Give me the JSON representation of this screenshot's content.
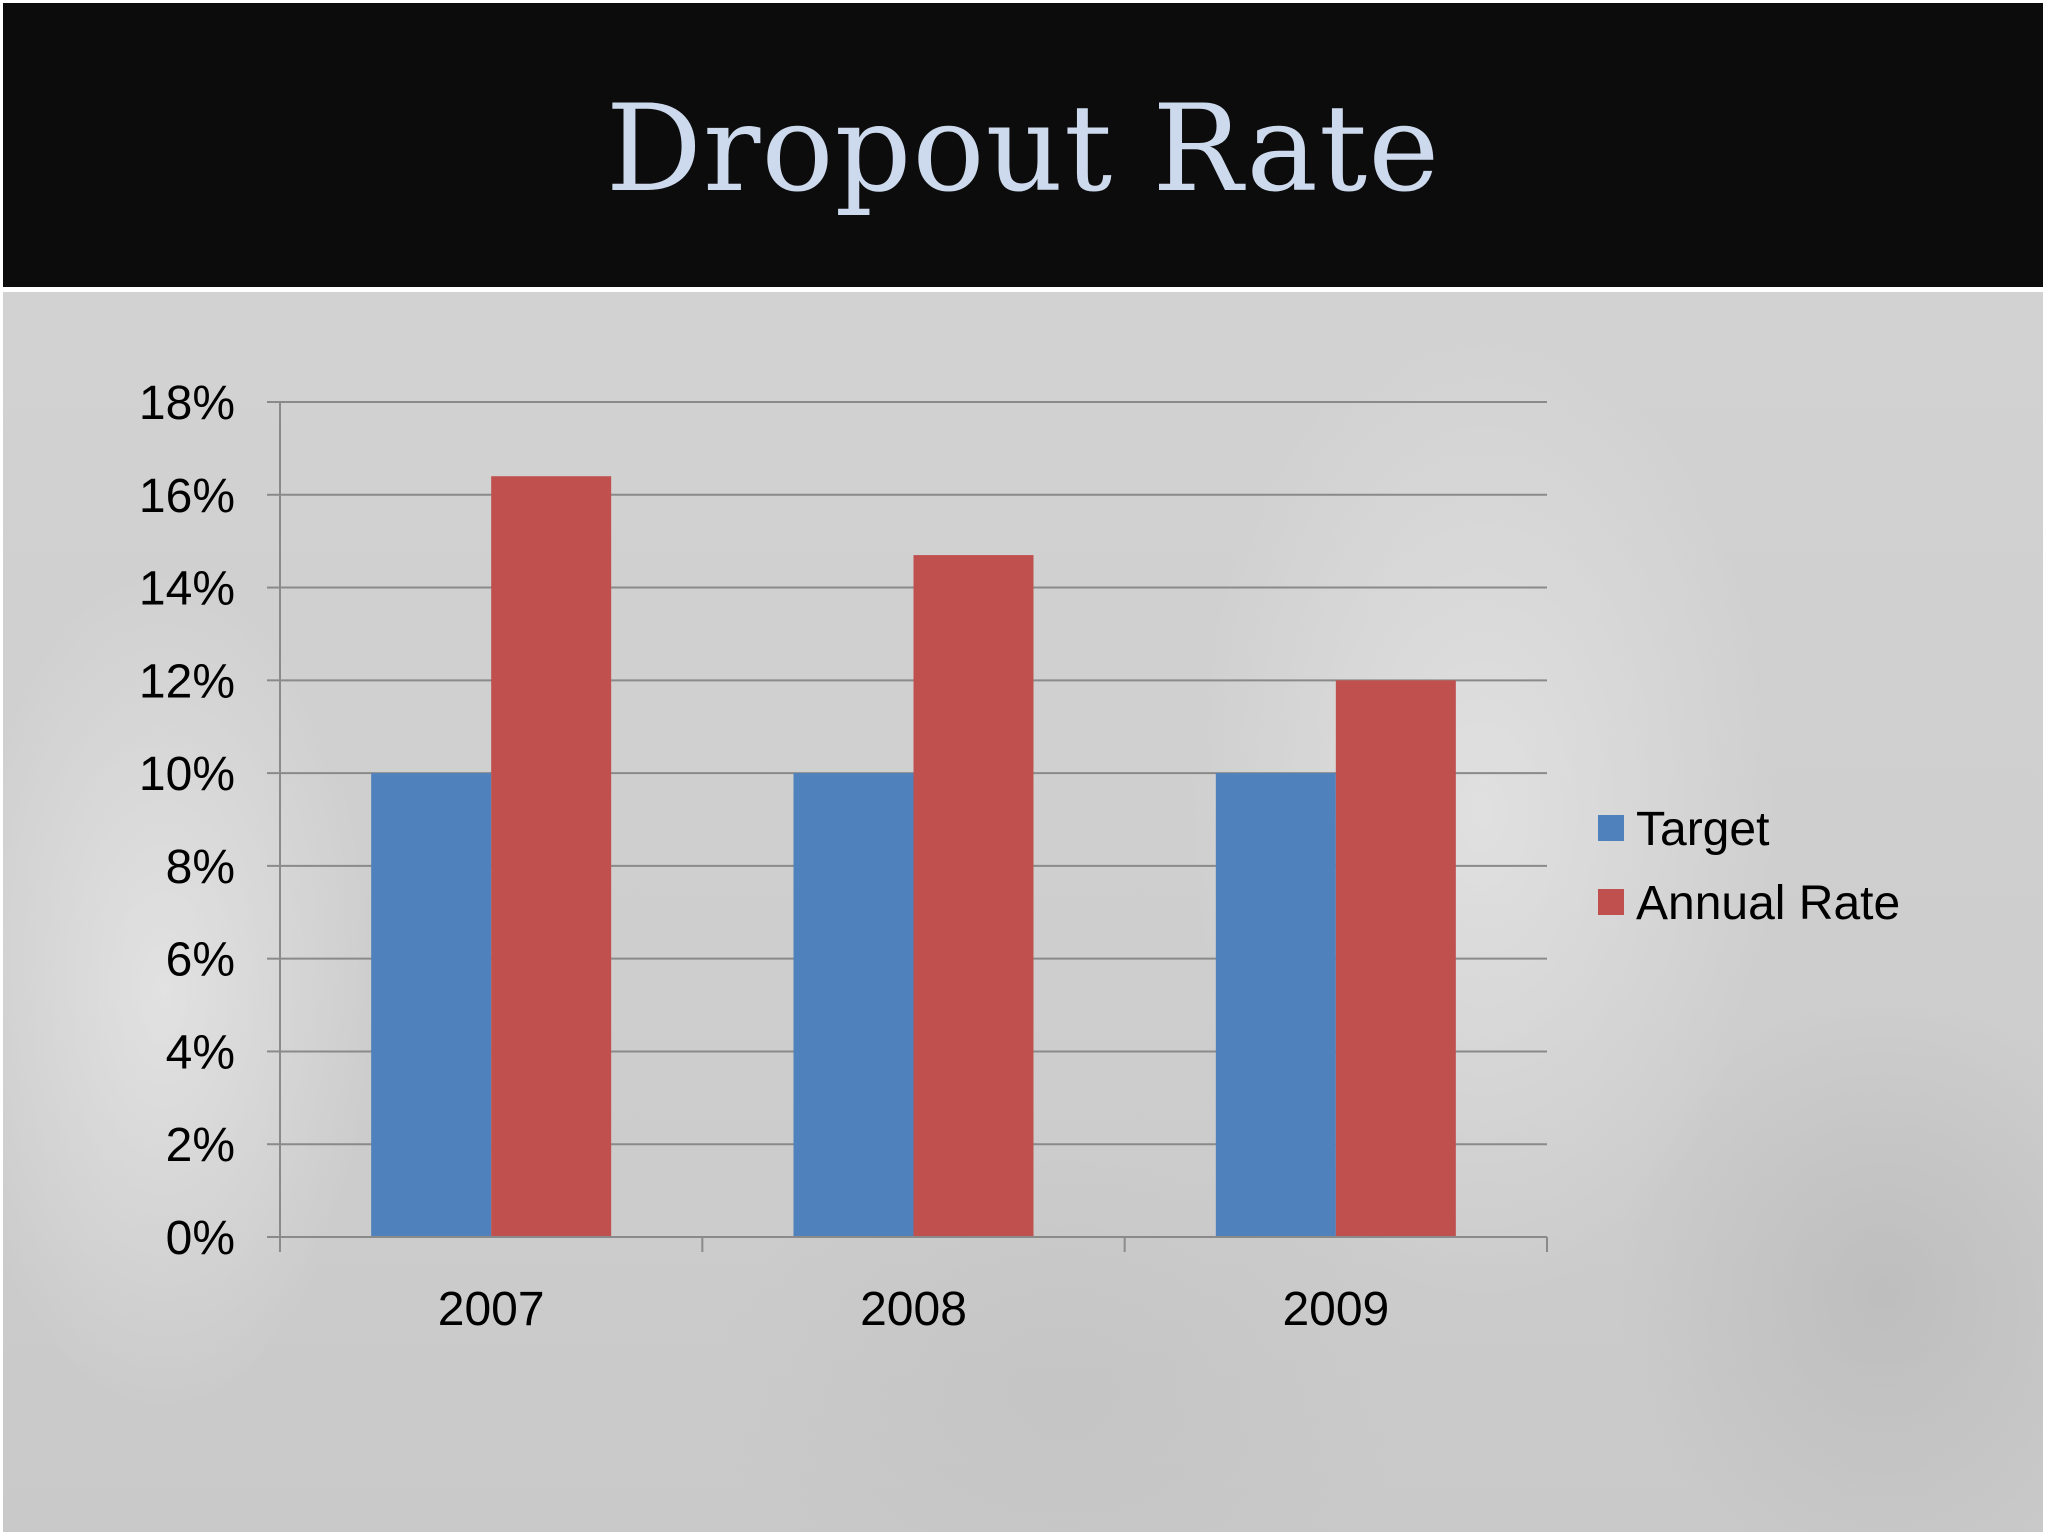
{
  "slide": {
    "title": "Dropout Rate"
  },
  "colors": {
    "title_bar": "#0c0c0d",
    "title_text": "#cdd9ec",
    "target": "#4f81bd",
    "annual_rate": "#c0504d",
    "gridline": "#8a8a8a"
  },
  "chart_data": {
    "type": "bar",
    "title": "",
    "xlabel": "",
    "ylabel": "",
    "categories": [
      "2007",
      "2008",
      "2009"
    ],
    "series": [
      {
        "name": "Target",
        "values": [
          10,
          10,
          10
        ]
      },
      {
        "name": "Annual Rate",
        "values": [
          16.4,
          14.7,
          12.0
        ]
      }
    ],
    "ylim": [
      0,
      18
    ],
    "y_ticks": [
      0,
      2,
      4,
      6,
      8,
      10,
      12,
      14,
      16,
      18
    ],
    "y_tick_labels": [
      "0%",
      "2%",
      "4%",
      "6%",
      "8%",
      "10%",
      "12%",
      "14%",
      "16%",
      "18%"
    ],
    "grid": true,
    "legend_position": "right"
  }
}
